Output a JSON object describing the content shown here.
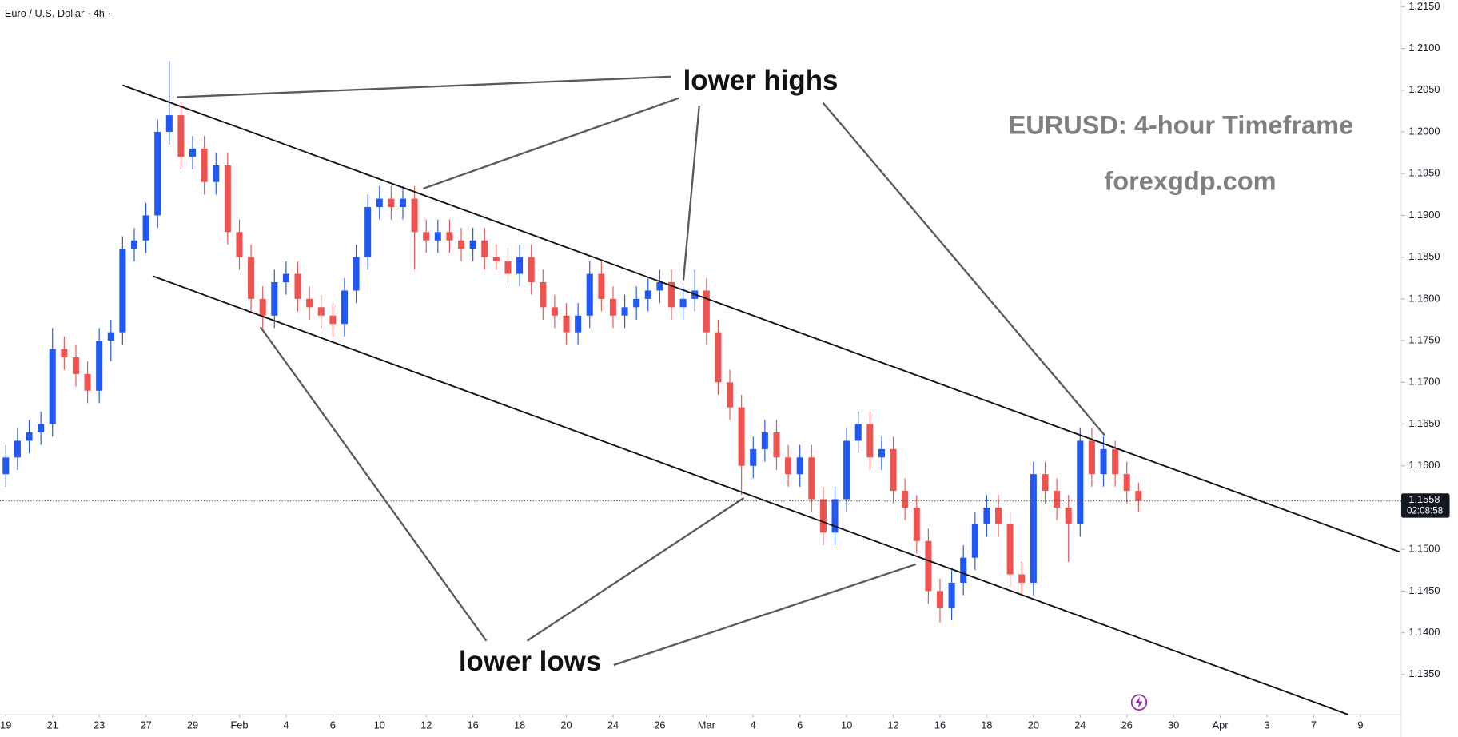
{
  "chart_data": {
    "type": "candlestick",
    "title": "Euro / U.S. Dollar · 4h ·",
    "up_color": "#2157f3",
    "down_color": "#ef5350",
    "xlim": [
      -0.5,
      119.5
    ],
    "ylim": [
      1.1302,
      1.2158
    ],
    "xticks": [
      {
        "value": 0,
        "label": "19"
      },
      {
        "value": 4,
        "label": "21"
      },
      {
        "value": 8,
        "label": "23"
      },
      {
        "value": 12,
        "label": "27"
      },
      {
        "value": 16,
        "label": "29"
      },
      {
        "value": 20,
        "label": "Feb"
      },
      {
        "value": 24,
        "label": "4"
      },
      {
        "value": 28,
        "label": "6"
      },
      {
        "value": 32,
        "label": "10"
      },
      {
        "value": 36,
        "label": "12"
      },
      {
        "value": 40,
        "label": "16"
      },
      {
        "value": 44,
        "label": "18"
      },
      {
        "value": 48,
        "label": "20"
      },
      {
        "value": 52,
        "label": "24"
      },
      {
        "value": 56,
        "label": "26"
      },
      {
        "value": 60,
        "label": "Mar"
      },
      {
        "value": 64,
        "label": "4"
      },
      {
        "value": 68,
        "label": "6"
      },
      {
        "value": 72,
        "label": "10"
      },
      {
        "value": 76,
        "label": "12"
      },
      {
        "value": 80,
        "label": "16"
      },
      {
        "value": 84,
        "label": "18"
      },
      {
        "value": 88,
        "label": "20"
      },
      {
        "value": 92,
        "label": "24"
      },
      {
        "value": 96,
        "label": "26"
      },
      {
        "value": 100,
        "label": "30"
      },
      {
        "value": 104,
        "label": "Apr"
      },
      {
        "value": 108,
        "label": "3"
      },
      {
        "value": 112,
        "label": "7"
      },
      {
        "value": 116,
        "label": "9"
      }
    ],
    "yticks": [
      {
        "value": 1.135,
        "label": "1.1350"
      },
      {
        "value": 1.14,
        "label": "1.1400"
      },
      {
        "value": 1.145,
        "label": "1.1450"
      },
      {
        "value": 1.15,
        "label": "1.1500"
      },
      {
        "value": 1.155,
        "label": "1.1550"
      },
      {
        "value": 1.16,
        "label": "1.1600"
      },
      {
        "value": 1.165,
        "label": "1.1650"
      },
      {
        "value": 1.17,
        "label": "1.1700"
      },
      {
        "value": 1.175,
        "label": "1.1750"
      },
      {
        "value": 1.18,
        "label": "1.1800"
      },
      {
        "value": 1.185,
        "label": "1.1850"
      },
      {
        "value": 1.19,
        "label": "1.1900"
      },
      {
        "value": 1.195,
        "label": "1.1950"
      },
      {
        "value": 1.2,
        "label": "1.2000"
      },
      {
        "value": 1.205,
        "label": "1.2050"
      },
      {
        "value": 1.21,
        "label": "1.2100"
      },
      {
        "value": 1.215,
        "label": "1.2150"
      }
    ],
    "open": [
      1.159,
      1.161,
      1.163,
      1.164,
      1.165,
      1.174,
      1.173,
      1.171,
      1.169,
      1.175,
      1.176,
      1.186,
      1.187,
      1.19,
      1.2,
      1.202,
      1.197,
      1.198,
      1.194,
      1.196,
      1.188,
      1.185,
      1.18,
      1.178,
      1.182,
      1.183,
      1.18,
      1.179,
      1.178,
      1.177,
      1.181,
      1.185,
      1.191,
      1.192,
      1.191,
      1.192,
      1.188,
      1.187,
      1.188,
      1.187,
      1.186,
      1.187,
      1.185,
      1.1845,
      1.183,
      1.185,
      1.182,
      1.179,
      1.178,
      1.176,
      1.178,
      1.183,
      1.18,
      1.178,
      1.179,
      1.18,
      1.181,
      1.182,
      1.179,
      1.18,
      1.181,
      1.176,
      1.17,
      1.167,
      1.16,
      1.162,
      1.164,
      1.161,
      1.159,
      1.161,
      1.156,
      1.152,
      1.156,
      1.163,
      1.165,
      1.161,
      1.162,
      1.157,
      1.155,
      1.151,
      1.145,
      1.143,
      1.146,
      1.149,
      1.153,
      1.155,
      1.153,
      1.147,
      1.146,
      1.159,
      1.157,
      1.155,
      1.153,
      1.163,
      1.159,
      1.162,
      1.159,
      1.157
    ],
    "high": [
      1.1625,
      1.1645,
      1.1655,
      1.1665,
      1.1765,
      1.1755,
      1.1745,
      1.1725,
      1.1765,
      1.1775,
      1.1875,
      1.1885,
      1.1915,
      1.2015,
      1.2085,
      1.2035,
      1.1995,
      1.1995,
      1.1975,
      1.1975,
      1.1895,
      1.1865,
      1.1815,
      1.1835,
      1.1845,
      1.1845,
      1.1815,
      1.1805,
      1.1795,
      1.1825,
      1.1865,
      1.1925,
      1.1935,
      1.1935,
      1.1935,
      1.1935,
      1.1895,
      1.1895,
      1.1895,
      1.1885,
      1.1885,
      1.1885,
      1.1865,
      1.186,
      1.1865,
      1.1865,
      1.1835,
      1.1805,
      1.1795,
      1.1795,
      1.1845,
      1.1845,
      1.1815,
      1.1805,
      1.1815,
      1.1825,
      1.1835,
      1.1835,
      1.1815,
      1.1835,
      1.1825,
      1.1775,
      1.1715,
      1.1685,
      1.1635,
      1.1655,
      1.1655,
      1.1625,
      1.1625,
      1.1625,
      1.1575,
      1.1575,
      1.1645,
      1.1665,
      1.1665,
      1.1635,
      1.1635,
      1.1585,
      1.1565,
      1.1525,
      1.1465,
      1.1475,
      1.1505,
      1.1545,
      1.1565,
      1.1565,
      1.1545,
      1.1485,
      1.1605,
      1.1605,
      1.1585,
      1.1565,
      1.1645,
      1.1645,
      1.1635,
      1.163,
      1.1605,
      1.158
    ],
    "low": [
      1.1575,
      1.1595,
      1.1615,
      1.1625,
      1.1635,
      1.1715,
      1.1695,
      1.1675,
      1.1675,
      1.1725,
      1.1745,
      1.1845,
      1.1855,
      1.1885,
      1.1985,
      1.1955,
      1.1955,
      1.1925,
      1.1925,
      1.1865,
      1.1835,
      1.1785,
      1.1765,
      1.1765,
      1.1805,
      1.1785,
      1.1775,
      1.1765,
      1.1755,
      1.1755,
      1.1795,
      1.1835,
      1.1895,
      1.1895,
      1.1895,
      1.1835,
      1.1855,
      1.1855,
      1.1855,
      1.1845,
      1.1845,
      1.1835,
      1.1835,
      1.1815,
      1.1815,
      1.1805,
      1.1775,
      1.1765,
      1.1745,
      1.1745,
      1.1765,
      1.1785,
      1.1765,
      1.1765,
      1.1775,
      1.1785,
      1.1795,
      1.1775,
      1.1775,
      1.1785,
      1.1745,
      1.1685,
      1.1655,
      1.1565,
      1.1585,
      1.1605,
      1.1595,
      1.1575,
      1.1575,
      1.1545,
      1.1505,
      1.1505,
      1.1545,
      1.1615,
      1.1595,
      1.1595,
      1.1555,
      1.1535,
      1.1495,
      1.1435,
      1.1412,
      1.1415,
      1.1445,
      1.1475,
      1.1515,
      1.1515,
      1.1455,
      1.1445,
      1.1445,
      1.1555,
      1.1535,
      1.1485,
      1.1515,
      1.1575,
      1.1575,
      1.1575,
      1.1555,
      1.1545
    ],
    "close": [
      1.161,
      1.163,
      1.164,
      1.165,
      1.174,
      1.173,
      1.171,
      1.169,
      1.175,
      1.176,
      1.186,
      1.187,
      1.19,
      1.2,
      1.202,
      1.197,
      1.198,
      1.194,
      1.196,
      1.188,
      1.185,
      1.18,
      1.178,
      1.182,
      1.183,
      1.18,
      1.179,
      1.178,
      1.177,
      1.181,
      1.185,
      1.191,
      1.192,
      1.191,
      1.192,
      1.188,
      1.187,
      1.188,
      1.187,
      1.186,
      1.187,
      1.185,
      1.1845,
      1.183,
      1.185,
      1.182,
      1.179,
      1.178,
      1.176,
      1.178,
      1.183,
      1.18,
      1.178,
      1.179,
      1.18,
      1.181,
      1.182,
      1.179,
      1.18,
      1.181,
      1.176,
      1.17,
      1.167,
      1.16,
      1.162,
      1.164,
      1.161,
      1.159,
      1.161,
      1.156,
      1.152,
      1.156,
      1.163,
      1.165,
      1.161,
      1.162,
      1.157,
      1.155,
      1.151,
      1.145,
      1.143,
      1.146,
      1.149,
      1.153,
      1.155,
      1.153,
      1.147,
      1.146,
      1.159,
      1.157,
      1.155,
      1.153,
      1.163,
      1.159,
      1.162,
      1.159,
      1.157,
      1.1558
    ],
    "last_price": 1.1558,
    "countdown": "02:08:58",
    "channel_lines": [
      {
        "x": [
          10.0,
          119.35
        ],
        "y": [
          1.2056,
          1.1497
        ]
      },
      {
        "x": [
          12.64,
          114.96
        ],
        "y": [
          1.1827,
          1.1302
        ]
      }
    ],
    "annotations": [
      "lower highs",
      "lower lows",
      "EURUSD: 4-hour Timeframe",
      "forexgdp.com"
    ]
  }
}
